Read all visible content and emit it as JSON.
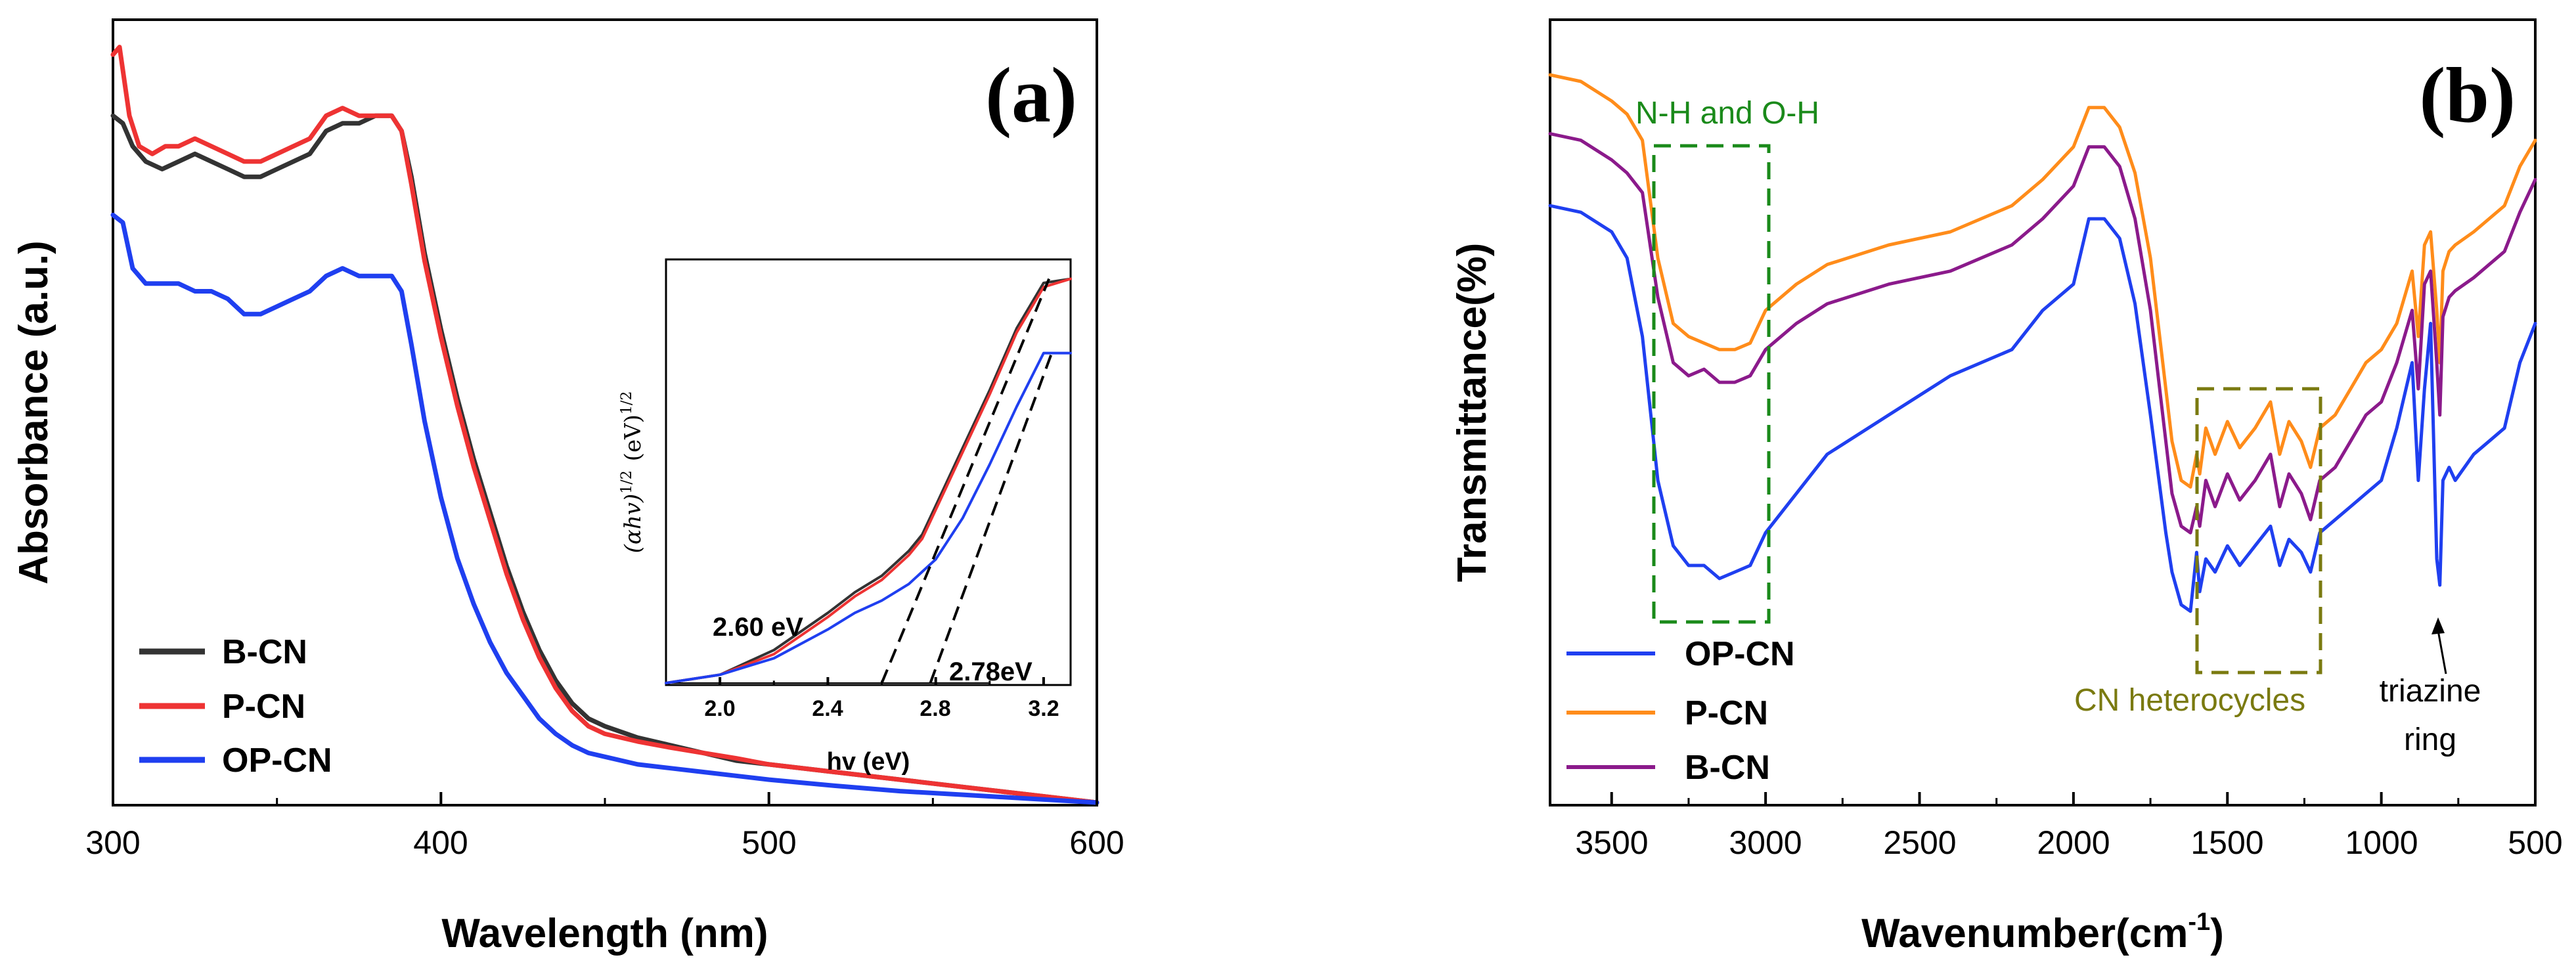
{
  "chart_data": [
    {
      "panel_label": "(a)",
      "type": "line",
      "xlabel": "Wavelength (nm)",
      "ylabel": "Absorbance (a.u.)",
      "xlim": [
        300,
        600
      ],
      "ylim": [
        0,
        1.0
      ],
      "xticks": [
        "300",
        "400",
        "500",
        "600"
      ],
      "legend_position": "bottom-left",
      "series": [
        {
          "name": "B-CN",
          "color": "#333333",
          "x": [
            300,
            303,
            306,
            310,
            315,
            320,
            325,
            330,
            335,
            340,
            345,
            350,
            355,
            360,
            365,
            370,
            375,
            380,
            385,
            388,
            391,
            395,
            400,
            405,
            410,
            415,
            420,
            425,
            430,
            435,
            440,
            445,
            450,
            460,
            470,
            480,
            490,
            500,
            520,
            540,
            560,
            580,
            600
          ],
          "y": [
            0.9,
            0.89,
            0.86,
            0.84,
            0.83,
            0.84,
            0.85,
            0.84,
            0.83,
            0.82,
            0.82,
            0.83,
            0.84,
            0.85,
            0.88,
            0.89,
            0.89,
            0.9,
            0.9,
            0.88,
            0.82,
            0.72,
            0.62,
            0.53,
            0.45,
            0.38,
            0.31,
            0.25,
            0.2,
            0.16,
            0.13,
            0.11,
            0.1,
            0.085,
            0.075,
            0.065,
            0.055,
            0.05,
            0.04,
            0.03,
            0.02,
            0.01,
            0.0
          ]
        },
        {
          "name": "P-CN",
          "color": "#ee3333",
          "x": [
            300,
            302,
            305,
            308,
            312,
            316,
            320,
            325,
            330,
            335,
            340,
            345,
            350,
            355,
            360,
            365,
            370,
            375,
            380,
            385,
            388,
            391,
            395,
            400,
            405,
            410,
            415,
            420,
            425,
            430,
            435,
            440,
            445,
            450,
            460,
            470,
            480,
            490,
            500,
            520,
            540,
            560,
            580,
            600
          ],
          "y": [
            0.98,
            0.99,
            0.9,
            0.86,
            0.85,
            0.86,
            0.86,
            0.87,
            0.86,
            0.85,
            0.84,
            0.84,
            0.85,
            0.86,
            0.87,
            0.9,
            0.91,
            0.9,
            0.9,
            0.9,
            0.88,
            0.81,
            0.71,
            0.61,
            0.52,
            0.44,
            0.37,
            0.3,
            0.24,
            0.19,
            0.15,
            0.12,
            0.1,
            0.09,
            0.08,
            0.072,
            0.065,
            0.058,
            0.05,
            0.04,
            0.03,
            0.02,
            0.01,
            0.0
          ]
        },
        {
          "name": "OP-CN",
          "color": "#1f3ff0",
          "x": [
            300,
            303,
            306,
            310,
            315,
            320,
            325,
            330,
            335,
            340,
            345,
            350,
            355,
            360,
            365,
            370,
            375,
            380,
            385,
            388,
            391,
            395,
            400,
            405,
            410,
            415,
            420,
            425,
            430,
            435,
            440,
            445,
            450,
            460,
            470,
            480,
            490,
            500,
            520,
            540,
            560,
            580,
            600
          ],
          "y": [
            0.77,
            0.76,
            0.7,
            0.68,
            0.68,
            0.68,
            0.67,
            0.67,
            0.66,
            0.64,
            0.64,
            0.65,
            0.66,
            0.67,
            0.69,
            0.7,
            0.69,
            0.69,
            0.69,
            0.67,
            0.6,
            0.5,
            0.4,
            0.32,
            0.26,
            0.21,
            0.17,
            0.14,
            0.11,
            0.09,
            0.075,
            0.065,
            0.06,
            0.05,
            0.045,
            0.04,
            0.035,
            0.03,
            0.022,
            0.015,
            0.01,
            0.005,
            0.0
          ]
        }
      ],
      "inset": {
        "type": "line",
        "xlabel": "hv (eV)",
        "ylabel": "(αhv)^1/2 (eV)^1/2",
        "ylabel_main": "(αhv)",
        "ylabel_sup1": "1/2",
        "ylabel_unit": "(eV)",
        "ylabel_sup2": "1/2",
        "xlim": [
          1.8,
          3.3
        ],
        "ylim": [
          0,
          1.0
        ],
        "xticks": [
          "2.0",
          "2.4",
          "2.8",
          "3.2"
        ],
        "series": [
          {
            "name": "B-CN",
            "color": "#333333",
            "x": [
              1.8,
              2.0,
              2.2,
              2.4,
              2.5,
              2.6,
              2.65,
              2.7,
              2.75,
              2.8,
              2.9,
              3.0,
              3.1,
              3.2,
              3.3
            ],
            "y": [
              0.0,
              0.02,
              0.08,
              0.17,
              0.22,
              0.26,
              0.29,
              0.32,
              0.36,
              0.43,
              0.57,
              0.71,
              0.86,
              0.97,
              0.98
            ]
          },
          {
            "name": "P-CN",
            "color": "#ee3333",
            "x": [
              1.8,
              2.0,
              2.2,
              2.4,
              2.5,
              2.6,
              2.65,
              2.7,
              2.75,
              2.8,
              2.9,
              3.0,
              3.1,
              3.2,
              3.3
            ],
            "y": [
              0.0,
              0.02,
              0.07,
              0.16,
              0.21,
              0.25,
              0.28,
              0.31,
              0.35,
              0.42,
              0.56,
              0.7,
              0.85,
              0.96,
              0.98
            ]
          },
          {
            "name": "OP-CN",
            "color": "#1f3ff0",
            "x": [
              1.8,
              2.0,
              2.2,
              2.4,
              2.5,
              2.6,
              2.7,
              2.8,
              2.9,
              3.0,
              3.1,
              3.2,
              3.3
            ],
            "y": [
              0.0,
              0.02,
              0.06,
              0.13,
              0.17,
              0.2,
              0.24,
              0.3,
              0.4,
              0.53,
              0.67,
              0.8,
              0.8
            ]
          }
        ],
        "tangent_lines": [
          {
            "x": [
              2.6,
              3.22
            ],
            "y": [
              0.0,
              0.98
            ]
          },
          {
            "x": [
              2.78,
              3.23
            ],
            "y": [
              0.0,
              0.8
            ]
          }
        ],
        "baseline": {
          "x": [
            1.8,
            3.0
          ],
          "y": [
            0.0,
            0.0
          ]
        },
        "annotations": [
          {
            "text": "2.60 eV",
            "x": 2.0,
            "y": 0.2
          },
          {
            "text": "2.78eV",
            "x": 2.82,
            "y": 0.05
          }
        ]
      }
    },
    {
      "panel_label": "(b)",
      "type": "line",
      "xlabel": "Wavenumber(cm",
      "xlabel_sup": "-1",
      "xlabel_close": ")",
      "ylabel": "Transmittance(%)",
      "xlim": [
        3700,
        500
      ],
      "ylim": [
        0,
        1.0
      ],
      "xticks": [
        "3500",
        "3000",
        "2500",
        "2000",
        "1500",
        "1000",
        "500"
      ],
      "legend_position": "bottom-left",
      "series": [
        {
          "name": "OP-CN",
          "color": "#1f3ff0",
          "x": [
            3700,
            3600,
            3500,
            3450,
            3400,
            3350,
            3300,
            3250,
            3200,
            3150,
            3100,
            3050,
            3000,
            2900,
            2800,
            2600,
            2400,
            2200,
            2100,
            2000,
            1950,
            1900,
            1850,
            1800,
            1750,
            1700,
            1680,
            1650,
            1620,
            1600,
            1590,
            1570,
            1540,
            1500,
            1460,
            1410,
            1360,
            1330,
            1300,
            1260,
            1230,
            1200,
            1150,
            1100,
            1050,
            1000,
            950,
            900,
            880,
            860,
            840,
            820,
            810,
            800,
            780,
            760,
            700,
            650,
            600,
            550,
            500
          ],
          "y": [
            0.8,
            0.79,
            0.76,
            0.72,
            0.6,
            0.38,
            0.28,
            0.25,
            0.25,
            0.23,
            0.24,
            0.25,
            0.3,
            0.36,
            0.42,
            0.48,
            0.54,
            0.58,
            0.64,
            0.68,
            0.78,
            0.78,
            0.75,
            0.65,
            0.48,
            0.3,
            0.24,
            0.19,
            0.18,
            0.27,
            0.21,
            0.26,
            0.24,
            0.28,
            0.25,
            0.28,
            0.31,
            0.25,
            0.29,
            0.27,
            0.24,
            0.3,
            0.32,
            0.34,
            0.36,
            0.38,
            0.46,
            0.56,
            0.38,
            0.52,
            0.62,
            0.26,
            0.22,
            0.38,
            0.4,
            0.38,
            0.42,
            0.44,
            0.46,
            0.56,
            0.62
          ]
        },
        {
          "name": "P-CN",
          "color": "#ff8c1a",
          "x": [
            3700,
            3600,
            3500,
            3450,
            3400,
            3350,
            3300,
            3250,
            3200,
            3150,
            3100,
            3050,
            3000,
            2900,
            2800,
            2600,
            2400,
            2200,
            2100,
            2000,
            1950,
            1900,
            1850,
            1800,
            1750,
            1700,
            1680,
            1650,
            1620,
            1600,
            1590,
            1570,
            1540,
            1500,
            1460,
            1410,
            1360,
            1330,
            1300,
            1260,
            1230,
            1200,
            1150,
            1100,
            1050,
            1000,
            950,
            900,
            880,
            860,
            840,
            820,
            810,
            800,
            780,
            760,
            700,
            650,
            600,
            550,
            500
          ],
          "y": [
            1.0,
            0.99,
            0.96,
            0.94,
            0.9,
            0.72,
            0.62,
            0.6,
            0.59,
            0.58,
            0.58,
            0.59,
            0.64,
            0.68,
            0.71,
            0.74,
            0.76,
            0.8,
            0.84,
            0.89,
            0.95,
            0.95,
            0.92,
            0.85,
            0.72,
            0.52,
            0.44,
            0.38,
            0.37,
            0.42,
            0.39,
            0.46,
            0.42,
            0.47,
            0.43,
            0.46,
            0.5,
            0.42,
            0.47,
            0.44,
            0.4,
            0.46,
            0.48,
            0.52,
            0.56,
            0.58,
            0.62,
            0.7,
            0.6,
            0.74,
            0.76,
            0.64,
            0.56,
            0.7,
            0.73,
            0.74,
            0.76,
            0.78,
            0.8,
            0.86,
            0.9
          ]
        },
        {
          "name": "B-CN",
          "color": "#8b1a8b",
          "x": [
            3700,
            3600,
            3500,
            3450,
            3400,
            3350,
            3300,
            3250,
            3200,
            3150,
            3100,
            3050,
            3000,
            2900,
            2800,
            2600,
            2400,
            2200,
            2100,
            2000,
            1950,
            1900,
            1850,
            1800,
            1750,
            1700,
            1680,
            1650,
            1620,
            1600,
            1590,
            1570,
            1540,
            1500,
            1460,
            1410,
            1360,
            1330,
            1300,
            1260,
            1230,
            1200,
            1150,
            1100,
            1050,
            1000,
            950,
            900,
            880,
            860,
            840,
            820,
            810,
            800,
            780,
            760,
            700,
            650,
            600,
            550,
            500
          ],
          "y": [
            0.91,
            0.9,
            0.87,
            0.85,
            0.82,
            0.66,
            0.56,
            0.54,
            0.55,
            0.53,
            0.53,
            0.54,
            0.58,
            0.62,
            0.65,
            0.68,
            0.7,
            0.74,
            0.78,
            0.83,
            0.89,
            0.89,
            0.86,
            0.78,
            0.64,
            0.44,
            0.36,
            0.31,
            0.3,
            0.34,
            0.31,
            0.38,
            0.34,
            0.39,
            0.35,
            0.38,
            0.42,
            0.34,
            0.39,
            0.36,
            0.32,
            0.38,
            0.4,
            0.44,
            0.48,
            0.5,
            0.56,
            0.64,
            0.52,
            0.68,
            0.7,
            0.56,
            0.48,
            0.63,
            0.66,
            0.67,
            0.69,
            0.71,
            0.73,
            0.79,
            0.84
          ]
        }
      ],
      "annotations": [
        {
          "text": "N-H and O-H",
          "color": "#1a8a1a"
        },
        {
          "text": "CN heterocycles",
          "color": "#7a7a10"
        },
        {
          "text": "triazine",
          "color": "#000000"
        },
        {
          "text": "ring",
          "color": "#000000"
        }
      ]
    }
  ]
}
